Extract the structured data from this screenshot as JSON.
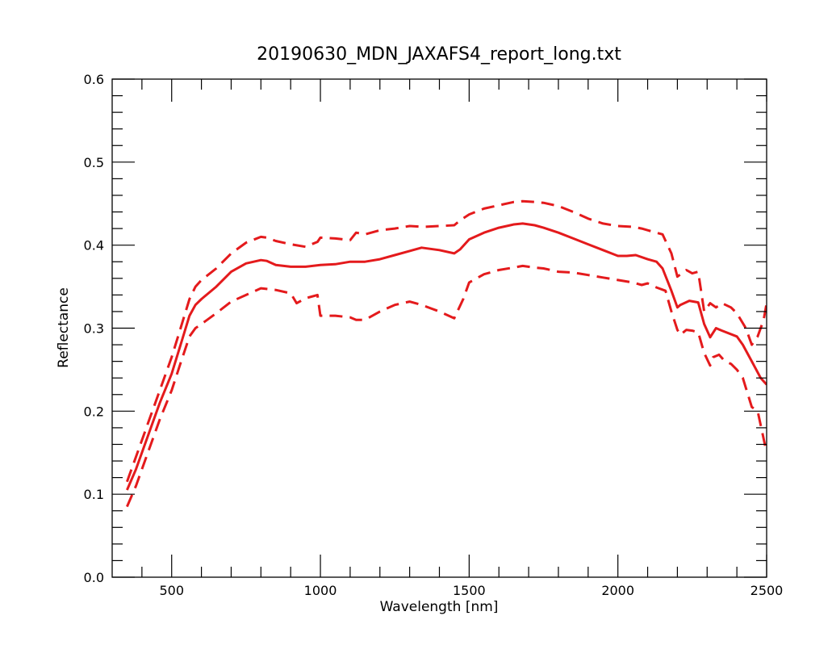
{
  "chart_data": {
    "type": "line",
    "title": "20190630_MDN_JAXAFS4_report_long.txt",
    "xlabel": "Wavelength [nm]",
    "ylabel": "Reflectance",
    "xlim": [
      300,
      2500
    ],
    "ylim": [
      0.0,
      0.6
    ],
    "xticks": [
      500,
      1000,
      1500,
      2000,
      2500
    ],
    "yticks": [
      0.0,
      0.1,
      0.2,
      0.3,
      0.4,
      0.5,
      0.6
    ],
    "grid": false,
    "line_color": "#e41a1c",
    "series": [
      {
        "style": "solid",
        "x": [
          350,
          380,
          420,
          460,
          500,
          530,
          560,
          580,
          600,
          650,
          700,
          750,
          800,
          820,
          850,
          900,
          950,
          1000,
          1050,
          1100,
          1150,
          1200,
          1250,
          1300,
          1340,
          1400,
          1450,
          1470,
          1500,
          1550,
          1600,
          1650,
          1680,
          1720,
          1750,
          1800,
          1850,
          1900,
          1950,
          2000,
          2030,
          2060,
          2100,
          2130,
          2150,
          2180,
          2200,
          2210,
          2240,
          2270,
          2290,
          2310,
          2330,
          2350,
          2400,
          2420,
          2450,
          2480,
          2500
        ],
        "values": [
          0.105,
          0.13,
          0.17,
          0.21,
          0.245,
          0.28,
          0.315,
          0.328,
          0.335,
          0.35,
          0.368,
          0.378,
          0.382,
          0.381,
          0.376,
          0.374,
          0.374,
          0.376,
          0.377,
          0.38,
          0.38,
          0.383,
          0.388,
          0.393,
          0.397,
          0.394,
          0.39,
          0.395,
          0.407,
          0.415,
          0.421,
          0.425,
          0.426,
          0.424,
          0.421,
          0.415,
          0.408,
          0.401,
          0.394,
          0.387,
          0.387,
          0.388,
          0.383,
          0.38,
          0.372,
          0.345,
          0.325,
          0.328,
          0.333,
          0.331,
          0.305,
          0.289,
          0.3,
          0.297,
          0.29,
          0.28,
          0.26,
          0.24,
          0.232
        ]
      },
      {
        "style": "dashed",
        "x": [
          350,
          380,
          420,
          460,
          500,
          530,
          560,
          580,
          600,
          650,
          700,
          750,
          800,
          820,
          850,
          900,
          950,
          990,
          1000,
          1050,
          1100,
          1120,
          1150,
          1200,
          1250,
          1300,
          1350,
          1400,
          1450,
          1470,
          1500,
          1550,
          1600,
          1650,
          1680,
          1720,
          1750,
          1800,
          1850,
          1900,
          1950,
          2000,
          2050,
          2080,
          2100,
          2150,
          2180,
          2200,
          2230,
          2250,
          2270,
          2290,
          2310,
          2330,
          2350,
          2380,
          2400,
          2430,
          2450,
          2470,
          2490,
          2500
        ],
        "values": [
          0.115,
          0.145,
          0.185,
          0.225,
          0.265,
          0.3,
          0.335,
          0.35,
          0.358,
          0.372,
          0.39,
          0.403,
          0.41,
          0.409,
          0.405,
          0.401,
          0.398,
          0.404,
          0.409,
          0.408,
          0.406,
          0.415,
          0.413,
          0.418,
          0.42,
          0.423,
          0.422,
          0.423,
          0.424,
          0.43,
          0.437,
          0.444,
          0.448,
          0.452,
          0.453,
          0.452,
          0.451,
          0.447,
          0.44,
          0.432,
          0.426,
          0.423,
          0.422,
          0.42,
          0.418,
          0.413,
          0.39,
          0.362,
          0.37,
          0.366,
          0.368,
          0.32,
          0.33,
          0.325,
          0.33,
          0.325,
          0.318,
          0.3,
          0.28,
          0.29,
          0.31,
          0.33
        ]
      },
      {
        "style": "dashed",
        "x": [
          350,
          380,
          420,
          460,
          500,
          530,
          560,
          580,
          600,
          650,
          700,
          750,
          800,
          850,
          900,
          920,
          950,
          990,
          1000,
          1050,
          1100,
          1120,
          1150,
          1200,
          1250,
          1300,
          1340,
          1400,
          1450,
          1480,
          1500,
          1550,
          1600,
          1650,
          1680,
          1720,
          1750,
          1800,
          1850,
          1900,
          1950,
          2000,
          2050,
          2080,
          2100,
          2130,
          2160,
          2180,
          2200,
          2210,
          2230,
          2250,
          2270,
          2290,
          2310,
          2320,
          2340,
          2360,
          2380,
          2400,
          2420,
          2450,
          2470,
          2500
        ],
        "values": [
          0.085,
          0.11,
          0.15,
          0.19,
          0.225,
          0.258,
          0.29,
          0.3,
          0.305,
          0.318,
          0.332,
          0.34,
          0.348,
          0.346,
          0.342,
          0.33,
          0.336,
          0.34,
          0.315,
          0.315,
          0.313,
          0.31,
          0.31,
          0.32,
          0.328,
          0.332,
          0.328,
          0.32,
          0.312,
          0.335,
          0.355,
          0.365,
          0.37,
          0.373,
          0.375,
          0.373,
          0.372,
          0.368,
          0.367,
          0.364,
          0.361,
          0.358,
          0.355,
          0.352,
          0.354,
          0.349,
          0.345,
          0.32,
          0.298,
          0.292,
          0.298,
          0.297,
          0.295,
          0.27,
          0.255,
          0.265,
          0.268,
          0.26,
          0.257,
          0.25,
          0.24,
          0.205,
          0.2,
          0.15
        ]
      }
    ]
  }
}
